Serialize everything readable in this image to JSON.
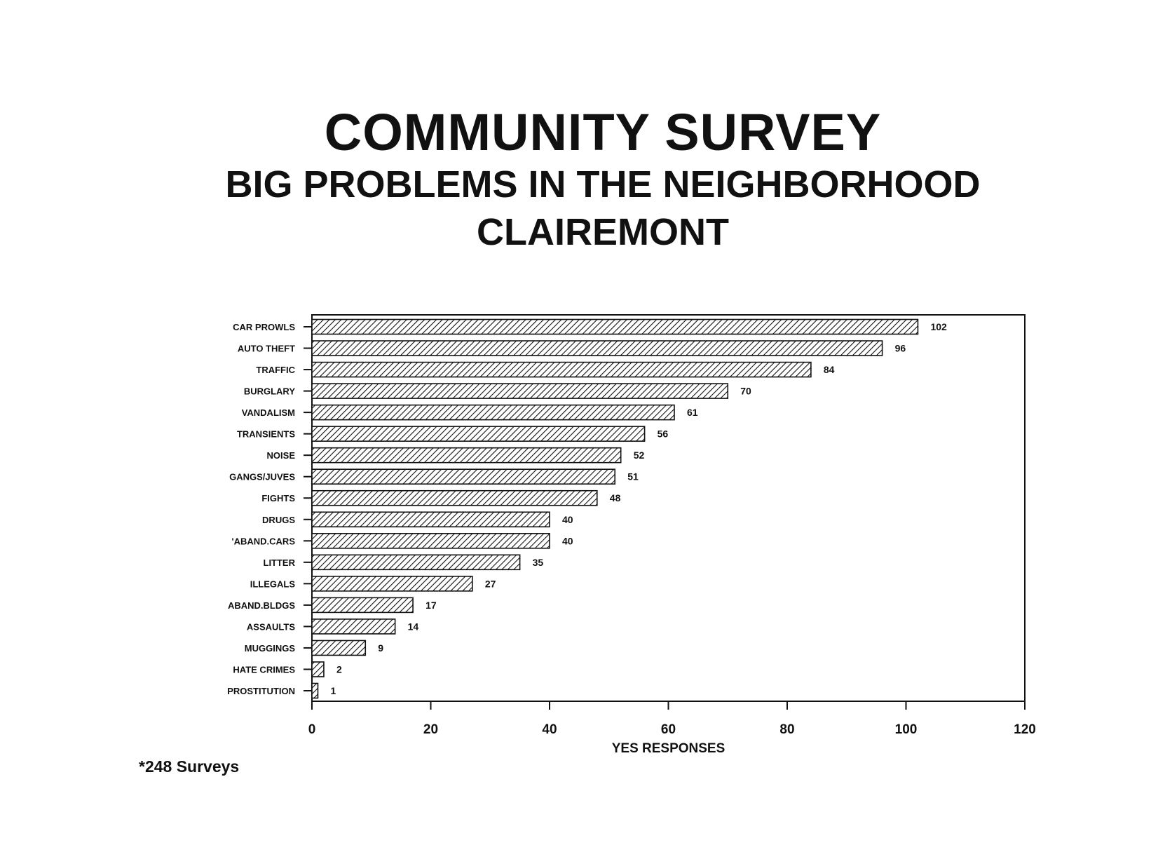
{
  "header": {
    "title": "COMMUNITY SURVEY",
    "subtitle": "BIG PROBLEMS IN THE NEIGHBORHOOD",
    "location": "CLAIREMONT"
  },
  "footnote": "*248 Surveys",
  "chart_data": {
    "type": "bar",
    "orientation": "horizontal",
    "title": "COMMUNITY SURVEY",
    "subtitle": "BIG PROBLEMS IN THE NEIGHBORHOOD",
    "xlabel": "YES RESPONSES",
    "ylabel": "",
    "xlim": [
      0,
      120
    ],
    "xticks": [
      0,
      20,
      40,
      60,
      80,
      100,
      120
    ],
    "grid": false,
    "legend": "none",
    "bar_pattern": "diagonal-hatch",
    "categories": [
      "CAR PROWLS",
      "AUTO THEFT",
      "TRAFFIC",
      "BURGLARY",
      "VANDALISM",
      "TRANSIENTS",
      "NOISE",
      "GANGS/JUVES",
      "FIGHTS",
      "DRUGS",
      "'ABAND.CARS",
      "LITTER",
      "ILLEGALS",
      "ABAND.BLDGS",
      "ASSAULTS",
      "MUGGINGS",
      "HATE CRIMES",
      "PROSTITUTION"
    ],
    "values": [
      102,
      96,
      84,
      70,
      61,
      56,
      52,
      51,
      48,
      40,
      40,
      35,
      27,
      17,
      14,
      9,
      2,
      1
    ],
    "value_labels": [
      "102",
      "96",
      "84",
      "70",
      "61",
      "56",
      "52",
      "51",
      "48",
      "40",
      "40",
      "35",
      "27",
      "17",
      "14",
      "9",
      "2",
      "1"
    ]
  }
}
